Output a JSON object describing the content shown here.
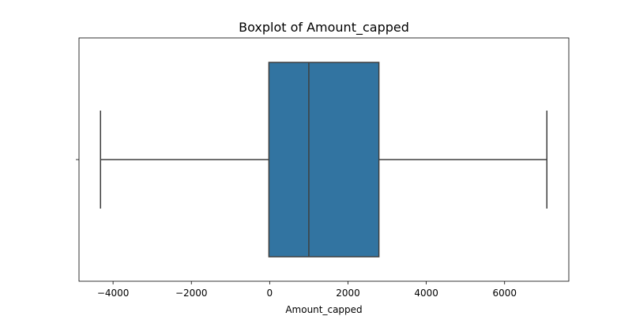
{
  "chart_data": {
    "type": "box",
    "orientation": "horizontal",
    "title": "Boxplot of Amount_capped",
    "xlabel": "Amount_capped",
    "ylabel": "",
    "xlim": [
      -4870,
      7640
    ],
    "x_ticks": [
      -4000,
      -2000,
      0,
      2000,
      4000,
      6000
    ],
    "x_tick_labels": [
      "−4000",
      "−2000",
      "0",
      "2000",
      "4000",
      "6000"
    ],
    "box": {
      "whisker_low": -4320,
      "q1": -20,
      "median": 1000,
      "q3": 2790,
      "whisker_high": 7080
    },
    "fill_color": "#3274a1",
    "line_color": "#3f3f3f",
    "grid": false
  }
}
